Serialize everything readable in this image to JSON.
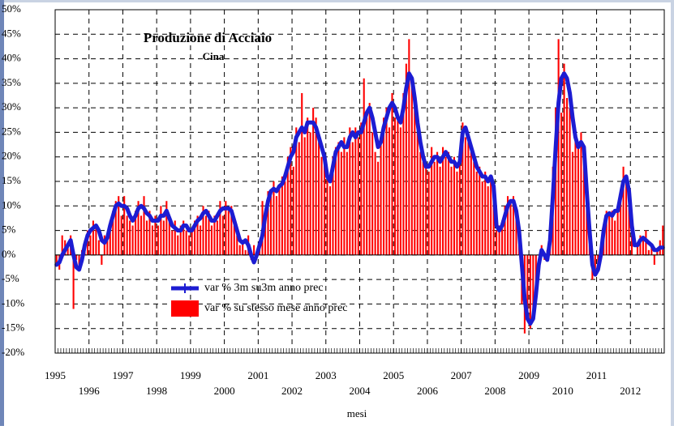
{
  "chart_data": {
    "type": "bar-line",
    "title": "Produzione di Acciaio",
    "subtitle": "Cina",
    "x_label": "mesi",
    "categories": [
      "1995",
      null,
      null,
      null,
      null,
      null,
      null,
      null,
      null,
      null,
      null,
      null,
      "1996",
      null,
      null,
      null,
      null,
      null,
      null,
      null,
      null,
      null,
      null,
      null,
      "1997",
      null,
      null,
      null,
      null,
      null,
      null,
      null,
      null,
      null,
      null,
      null,
      "1998",
      null,
      null,
      null,
      null,
      null,
      null,
      null,
      null,
      null,
      null,
      null,
      "1999",
      null,
      null,
      null,
      null,
      null,
      null,
      null,
      null,
      null,
      null,
      null,
      "2000",
      null,
      null,
      null,
      null,
      null,
      null,
      null,
      null,
      null,
      null,
      null,
      "2001",
      null,
      null,
      null,
      null,
      null,
      null,
      null,
      null,
      null,
      null,
      null,
      "2002",
      null,
      null,
      null,
      null,
      null,
      null,
      null,
      null,
      null,
      null,
      null,
      "2003",
      null,
      null,
      null,
      null,
      null,
      null,
      null,
      null,
      null,
      null,
      null,
      "2004",
      null,
      null,
      null,
      null,
      null,
      null,
      null,
      null,
      null,
      null,
      null,
      "2005",
      null,
      null,
      null,
      null,
      null,
      null,
      null,
      null,
      null,
      null,
      null,
      "2006",
      null,
      null,
      null,
      null,
      null,
      null,
      null,
      null,
      null,
      null,
      null,
      "2007",
      null,
      null,
      null,
      null,
      null,
      null,
      null,
      null,
      null,
      null,
      null,
      "2008",
      null,
      null,
      null,
      null,
      null,
      null,
      null,
      null,
      null,
      null,
      null,
      "2009",
      null,
      null,
      null,
      null,
      null,
      null,
      null,
      null,
      null,
      null,
      null,
      "2010",
      null,
      null,
      null,
      null,
      null,
      null,
      null,
      null,
      null,
      null,
      null,
      "2011",
      null,
      null,
      null,
      null,
      null,
      null,
      null,
      null,
      null,
      null,
      null,
      "2012",
      null,
      null,
      null,
      null,
      null,
      null,
      null,
      null,
      null,
      null,
      null
    ],
    "series": [
      {
        "name": "var % 3m su3m anno prec",
        "type": "line",
        "color": "#1c1cd2",
        "values": [
          -2,
          -1.5,
          0,
          1,
          2,
          3,
          0,
          -2.5,
          -3,
          -1,
          2,
          4,
          5,
          5.5,
          6,
          5,
          3,
          2.5,
          3.5,
          6,
          8,
          10,
          10.5,
          10,
          10,
          9.5,
          8,
          7,
          8,
          9.5,
          10,
          9.5,
          8.5,
          8,
          7,
          7,
          7,
          8,
          8,
          9,
          7.5,
          6,
          5.5,
          5,
          5,
          6,
          6,
          5,
          5,
          6,
          7,
          7.5,
          8.5,
          9,
          8,
          7,
          7,
          8,
          9,
          9.5,
          9.5,
          9.5,
          9,
          7,
          5,
          3,
          2.5,
          3,
          2,
          0,
          -1.5,
          0,
          2,
          4,
          8,
          11,
          13,
          13.5,
          13,
          14,
          14.5,
          16,
          18,
          20,
          21,
          24,
          25,
          26,
          25,
          27,
          27,
          27,
          26,
          24,
          22,
          20,
          16,
          15,
          18,
          21,
          22,
          23,
          22,
          22,
          24,
          25,
          24,
          25,
          25,
          27,
          29,
          30,
          28,
          25,
          22,
          23,
          26,
          28,
          30,
          31,
          30,
          28,
          27,
          30,
          34,
          37,
          36,
          32,
          27,
          23,
          20,
          18,
          18,
          19,
          20,
          20,
          19,
          20,
          21,
          20,
          19,
          19,
          18,
          19,
          25,
          26,
          24,
          22,
          20,
          18,
          17,
          16,
          16,
          15,
          16,
          14,
          6,
          5,
          6,
          8,
          10,
          11,
          11,
          9,
          5,
          -2,
          -9,
          -13,
          -14,
          -13,
          -8,
          -2,
          1,
          0,
          -1,
          3,
          12,
          22,
          31,
          36,
          37,
          36,
          33,
          28,
          24,
          22,
          23,
          22,
          13,
          5,
          -2,
          -4,
          -3,
          0,
          5,
          8,
          8.5,
          8,
          9,
          9,
          12,
          15,
          16,
          13,
          6,
          2,
          2,
          3,
          3.5,
          3,
          2.5,
          2,
          1,
          1,
          1.5,
          1.5
        ]
      },
      {
        "name": "var % su stesso mese anno prec",
        "type": "bar",
        "color": "#ff0000",
        "values": [
          -2,
          -3,
          4,
          3,
          2,
          4,
          -11,
          -1,
          -3,
          1,
          3,
          5,
          4,
          7,
          6,
          3,
          -2,
          4,
          3,
          7,
          9,
          11,
          12,
          8,
          12,
          8,
          7,
          6,
          9,
          11,
          8,
          12,
          7,
          9,
          6,
          8,
          6,
          10,
          7,
          11,
          8,
          5,
          7,
          4,
          6,
          7,
          5,
          4,
          5,
          7,
          8,
          6,
          10,
          8,
          9,
          6,
          8,
          7,
          11,
          8,
          11,
          9,
          10,
          6,
          4,
          2,
          3,
          1,
          4,
          -1,
          2,
          0,
          3,
          11,
          7,
          13,
          12,
          15,
          12,
          14,
          16,
          15,
          20,
          22,
          18,
          26,
          23,
          33,
          24,
          28,
          25,
          30,
          28,
          23,
          20,
          19,
          17,
          14,
          20,
          22,
          23,
          21,
          24,
          21,
          26,
          23,
          26,
          24,
          27,
          36,
          28,
          31,
          25,
          21,
          19,
          24,
          28,
          30,
          26,
          33,
          28,
          29,
          26,
          33,
          39,
          44,
          35,
          30,
          25,
          21,
          19,
          18,
          17,
          22,
          19,
          21,
          18,
          22,
          20,
          21,
          18,
          20,
          17,
          20,
          27,
          24,
          23,
          21,
          19,
          17,
          18,
          15,
          17,
          14,
          16,
          12,
          5,
          6,
          7,
          10,
          12,
          11,
          12,
          8,
          2,
          -10,
          -16,
          -12,
          -15,
          -12,
          -7,
          0,
          2,
          -1,
          1,
          6,
          18,
          30,
          44,
          29,
          39,
          32,
          30,
          21,
          24,
          22,
          25,
          20,
          12,
          2,
          -5,
          -3,
          -2,
          1,
          6,
          9,
          8,
          9,
          7,
          10,
          13,
          18,
          15,
          12,
          4,
          0,
          2,
          4,
          3,
          5,
          1,
          2,
          -2,
          1,
          3,
          6
        ]
      }
    ],
    "ylim": [
      -20,
      50
    ],
    "yticks": [
      {
        "value": -20,
        "label": "-20%"
      },
      {
        "value": -15,
        "label": "-15%"
      },
      {
        "value": -10,
        "label": "-10%"
      },
      {
        "value": -5,
        "label": "-5%"
      },
      {
        "value": 0,
        "label": "0%"
      },
      {
        "value": 5,
        "label": "5%"
      },
      {
        "value": 10,
        "label": "10%"
      },
      {
        "value": 15,
        "label": "15%"
      },
      {
        "value": 20,
        "label": "20%"
      },
      {
        "value": 25,
        "label": "25%"
      },
      {
        "value": 30,
        "label": "30%"
      },
      {
        "value": 35,
        "label": "35%"
      },
      {
        "value": 40,
        "label": "40%"
      },
      {
        "value": 45,
        "label": "45%"
      },
      {
        "value": 50,
        "label": "50%"
      }
    ],
    "grid": true
  }
}
